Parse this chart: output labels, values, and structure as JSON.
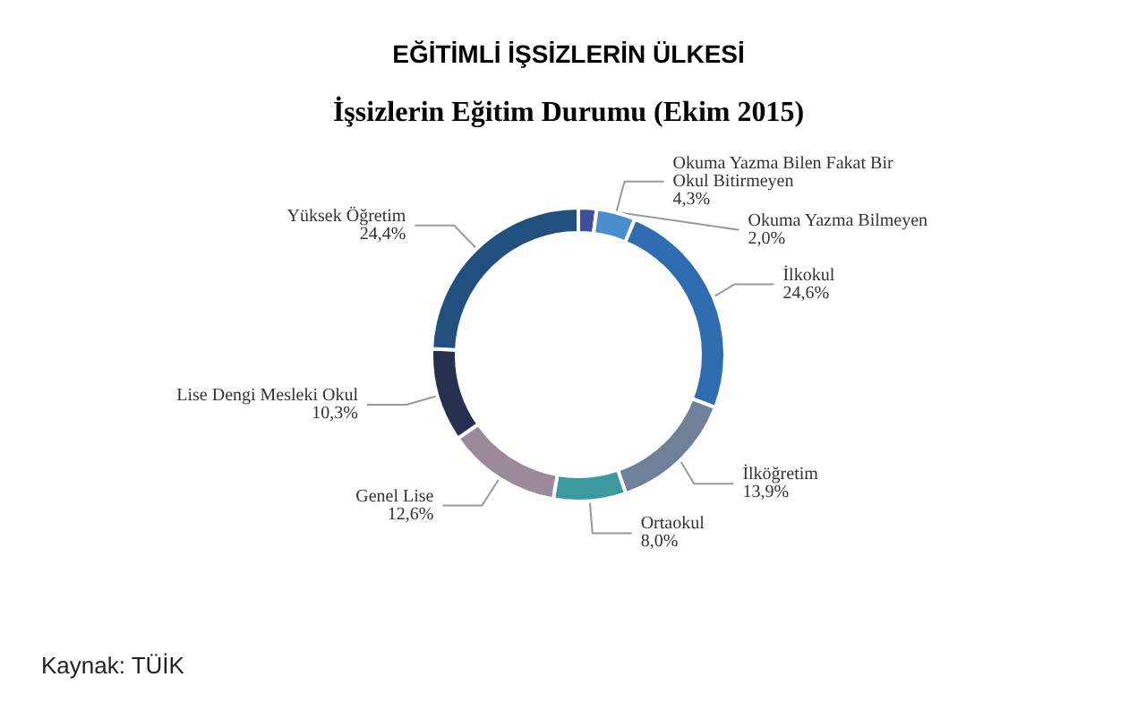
{
  "chart_data": {
    "type": "donut",
    "title": "EĞİTİMLİ İŞSİZLERİN ÜLKESİ",
    "subtitle": "İşsizlerin Eğitim Durumu (Ekim 2015)",
    "categories": [
      "Okuma Yazma Bilmeyen",
      "Okuma Yazma Bilen Fakat Bir Okul Bitirmeyen",
      "İlkokul",
      "İlköğretim",
      "Ortaokul",
      "Genel Lise",
      "Lise Dengi Mesleki Okul",
      "Yüksek Öğretim"
    ],
    "values": [
      2.0,
      4.3,
      24.6,
      13.9,
      8.0,
      12.6,
      10.3,
      24.4
    ],
    "value_labels": [
      "2,0%",
      "4,3%",
      "24,6%",
      "13,9%",
      "8,0%",
      "12,6%",
      "10,3%",
      "24,4%"
    ],
    "colors": [
      "#3f4f9a",
      "#4a8fcc",
      "#2f6cb0",
      "#6f8099",
      "#3a9a9e",
      "#9a8a9a",
      "#28304f",
      "#22507e"
    ],
    "legend": false,
    "annotations": [
      "Kaynak: TÜİK"
    ]
  }
}
